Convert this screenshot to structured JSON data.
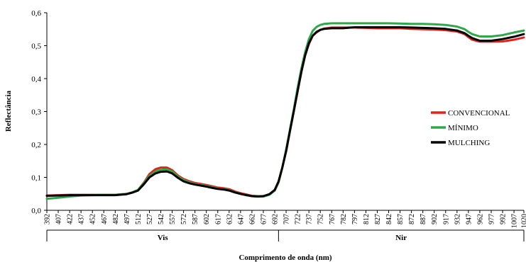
{
  "chart_data": {
    "type": "line",
    "ylabel": "Reflectância",
    "xlabel": "Comprimento de onda (nm)",
    "ylim": [
      0,
      0.6
    ],
    "y_ticks": [
      "0,0",
      "0,1",
      "0,2",
      "0,3",
      "0,4",
      "0,5",
      "0,6"
    ],
    "x_categories": [
      "392",
      "407",
      "422",
      "437",
      "452",
      "467",
      "482",
      "497",
      "512",
      "527",
      "542",
      "557",
      "572",
      "587",
      "602",
      "617",
      "632",
      "647",
      "662",
      "677",
      "692",
      "707",
      "722",
      "737",
      "752",
      "767",
      "782",
      "797",
      "812",
      "827",
      "842",
      "857",
      "872",
      "887",
      "902",
      "917",
      "932",
      "947",
      "962",
      "977",
      "992",
      "1007",
      "1020"
    ],
    "regions": [
      {
        "label": "Vis",
        "from": "392",
        "to": "697"
      },
      {
        "label": "Nir",
        "from": "697",
        "to": "1020"
      }
    ],
    "legend_position": "right",
    "series": [
      {
        "name": "CONVENCIONAL",
        "color": "#e8201c",
        "x": [
          392,
          407,
          422,
          437,
          452,
          467,
          482,
          497,
          505,
          512,
          520,
          527,
          535,
          542,
          550,
          557,
          565,
          572,
          580,
          587,
          595,
          602,
          610,
          617,
          625,
          632,
          640,
          647,
          655,
          662,
          670,
          677,
          685,
          692,
          697,
          702,
          707,
          712,
          717,
          722,
          727,
          732,
          737,
          742,
          747,
          752,
          757,
          767,
          782,
          797,
          812,
          827,
          842,
          857,
          872,
          887,
          902,
          917,
          932,
          942,
          947,
          952,
          962,
          977,
          992,
          1007,
          1020
        ],
        "y": [
          0.045,
          0.046,
          0.047,
          0.047,
          0.047,
          0.047,
          0.047,
          0.05,
          0.055,
          0.062,
          0.085,
          0.11,
          0.125,
          0.13,
          0.13,
          0.122,
          0.105,
          0.095,
          0.088,
          0.083,
          0.08,
          0.077,
          0.073,
          0.069,
          0.067,
          0.064,
          0.057,
          0.052,
          0.048,
          0.044,
          0.043,
          0.043,
          0.048,
          0.06,
          0.085,
          0.13,
          0.18,
          0.24,
          0.3,
          0.36,
          0.42,
          0.47,
          0.505,
          0.53,
          0.54,
          0.548,
          0.552,
          0.555,
          0.555,
          0.555,
          0.554,
          0.553,
          0.553,
          0.553,
          0.551,
          0.55,
          0.549,
          0.547,
          0.543,
          0.535,
          0.526,
          0.518,
          0.512,
          0.512,
          0.513,
          0.518,
          0.525
        ]
      },
      {
        "name": "MÍNIMO",
        "color": "#2ea84a",
        "x": [
          392,
          407,
          422,
          437,
          452,
          467,
          482,
          497,
          505,
          512,
          520,
          527,
          535,
          542,
          550,
          557,
          565,
          572,
          580,
          587,
          595,
          602,
          610,
          617,
          625,
          632,
          640,
          647,
          655,
          662,
          670,
          677,
          685,
          692,
          697,
          702,
          707,
          712,
          717,
          722,
          727,
          732,
          737,
          742,
          747,
          752,
          757,
          767,
          782,
          797,
          812,
          827,
          842,
          857,
          872,
          887,
          902,
          917,
          932,
          942,
          947,
          952,
          962,
          977,
          992,
          1007,
          1020
        ],
        "y": [
          0.035,
          0.038,
          0.042,
          0.045,
          0.046,
          0.047,
          0.047,
          0.05,
          0.055,
          0.062,
          0.083,
          0.105,
          0.118,
          0.123,
          0.124,
          0.118,
          0.102,
          0.092,
          0.085,
          0.08,
          0.077,
          0.074,
          0.07,
          0.066,
          0.064,
          0.061,
          0.055,
          0.05,
          0.046,
          0.043,
          0.042,
          0.042,
          0.047,
          0.06,
          0.085,
          0.13,
          0.185,
          0.245,
          0.305,
          0.37,
          0.43,
          0.48,
          0.52,
          0.545,
          0.557,
          0.563,
          0.566,
          0.568,
          0.568,
          0.568,
          0.568,
          0.568,
          0.568,
          0.567,
          0.566,
          0.566,
          0.565,
          0.563,
          0.558,
          0.55,
          0.542,
          0.535,
          0.528,
          0.528,
          0.532,
          0.54,
          0.546
        ]
      },
      {
        "name": "MULCHING",
        "color": "#000000",
        "x": [
          392,
          407,
          422,
          437,
          452,
          467,
          482,
          497,
          505,
          512,
          520,
          527,
          535,
          542,
          550,
          557,
          565,
          572,
          580,
          587,
          595,
          602,
          610,
          617,
          625,
          632,
          640,
          647,
          655,
          662,
          670,
          677,
          685,
          692,
          697,
          702,
          707,
          712,
          717,
          722,
          727,
          732,
          737,
          742,
          747,
          752,
          757,
          767,
          782,
          797,
          812,
          827,
          842,
          857,
          872,
          887,
          902,
          917,
          932,
          942,
          947,
          952,
          962,
          977,
          992,
          1007,
          1020
        ],
        "y": [
          0.044,
          0.045,
          0.046,
          0.046,
          0.046,
          0.046,
          0.046,
          0.049,
          0.054,
          0.06,
          0.08,
          0.1,
          0.112,
          0.117,
          0.118,
          0.112,
          0.098,
          0.088,
          0.082,
          0.078,
          0.075,
          0.072,
          0.068,
          0.065,
          0.063,
          0.06,
          0.054,
          0.05,
          0.046,
          0.043,
          0.042,
          0.043,
          0.049,
          0.062,
          0.088,
          0.13,
          0.18,
          0.24,
          0.3,
          0.36,
          0.42,
          0.47,
          0.508,
          0.53,
          0.542,
          0.548,
          0.551,
          0.553,
          0.553,
          0.556,
          0.556,
          0.556,
          0.556,
          0.556,
          0.555,
          0.554,
          0.553,
          0.551,
          0.546,
          0.538,
          0.53,
          0.523,
          0.515,
          0.515,
          0.52,
          0.527,
          0.535
        ]
      }
    ]
  }
}
